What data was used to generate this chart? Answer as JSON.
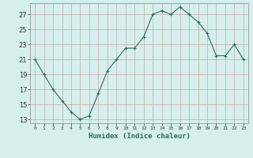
{
  "x": [
    0,
    1,
    2,
    3,
    4,
    5,
    6,
    7,
    8,
    9,
    10,
    11,
    12,
    13,
    14,
    15,
    16,
    17,
    18,
    19,
    20,
    21,
    22,
    23
  ],
  "y": [
    21,
    19,
    17,
    15.5,
    14,
    13,
    13.5,
    16.5,
    19.5,
    21,
    22.5,
    22.5,
    24,
    27,
    27.5,
    27,
    28,
    27,
    26,
    24.5,
    21.5,
    21.5,
    23,
    21
  ],
  "line_color": "#2e6b5e",
  "marker": "+",
  "marker_size": 3,
  "bg_color": "#d5f0ec",
  "grid_color": "#c8a8a8",
  "xlabel": "Humidex (Indice chaleur)",
  "ylabel_ticks": [
    13,
    15,
    17,
    19,
    21,
    23,
    25,
    27
  ],
  "xlim": [
    -0.5,
    23.5
  ],
  "ylim": [
    12.5,
    28.5
  ],
  "xtick_labels": [
    "0",
    "1",
    "2",
    "3",
    "4",
    "5",
    "6",
    "7",
    "8",
    "9",
    "10",
    "11",
    "12",
    "13",
    "14",
    "15",
    "16",
    "17",
    "18",
    "19",
    "20",
    "21",
    "22",
    "23"
  ]
}
